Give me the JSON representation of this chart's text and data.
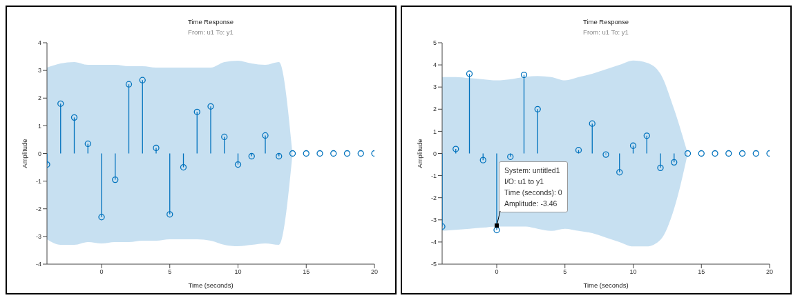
{
  "chart_data": [
    {
      "type": "lollipop",
      "title": "Time Response",
      "subtitle": "From: u1  To: y1",
      "xlabel": "Time (seconds)",
      "ylabel": "Amplitude",
      "x": [
        -4,
        -3,
        -2,
        -1,
        0,
        1,
        2,
        3,
        4,
        5,
        6,
        7,
        8,
        9,
        10,
        11,
        12,
        13,
        14,
        15,
        16,
        17,
        18,
        19,
        20
      ],
      "series": [
        {
          "color": "#0072bd",
          "values": [
            -0.4,
            1.8,
            1.3,
            0.35,
            -2.3,
            -0.95,
            2.5,
            2.65,
            0.2,
            -2.2,
            -0.5,
            1.5,
            1.7,
            0.6,
            -0.4,
            -0.1,
            0.65,
            -0.1,
            0,
            0,
            0,
            0,
            0,
            0,
            0
          ],
          "lower": [
            -3.1,
            -3.3,
            -3.3,
            -3.2,
            -3.25,
            -3.2,
            -3.2,
            -3.15,
            -3.15,
            -3.1,
            -3.1,
            -3.1,
            -3.15,
            -3.3,
            -3.35,
            -3.3,
            -3.25,
            -3.3,
            0,
            null,
            null,
            null,
            null,
            null,
            null
          ],
          "upper": [
            3.1,
            3.25,
            3.3,
            3.2,
            3.2,
            3.2,
            3.15,
            3.15,
            3.1,
            3.1,
            3.1,
            3.1,
            3.1,
            3.3,
            3.35,
            3.25,
            3.2,
            3.3,
            0,
            null,
            null,
            null,
            null,
            null,
            null
          ]
        }
      ],
      "xlim": [
        -4,
        20
      ],
      "xticks": [
        0,
        5,
        10,
        15,
        20
      ],
      "ylim": [
        -4,
        4
      ],
      "yticks": [
        -4,
        -3,
        -2,
        -1,
        0,
        1,
        2,
        3,
        4
      ],
      "marker": "circle",
      "grid": false,
      "legend": false
    },
    {
      "type": "lollipop",
      "title": "Time Response",
      "subtitle": "From: u1  To: y1",
      "xlabel": "Time (seconds)",
      "ylabel": "Amplitude",
      "x": [
        -4,
        -3,
        -2,
        -1,
        0,
        1,
        2,
        3,
        4,
        5,
        6,
        7,
        8,
        9,
        10,
        11,
        12,
        13,
        14,
        15,
        16,
        17,
        18,
        19,
        20
      ],
      "series": [
        {
          "color": "#0072bd",
          "values": [
            -3.3,
            0.2,
            3.6,
            -0.3,
            -3.46,
            -0.15,
            3.55,
            2.0,
            null,
            null,
            0.15,
            1.35,
            -0.05,
            -0.85,
            0.35,
            0.8,
            -0.65,
            -0.4,
            0,
            0,
            0,
            0,
            0,
            0,
            0
          ],
          "lower": [
            -3.5,
            -3.45,
            -3.4,
            -3.35,
            -3.3,
            -3.3,
            -3.3,
            -3.4,
            -3.5,
            -3.4,
            -3.5,
            -3.6,
            -3.8,
            -4.0,
            -4.2,
            -4.2,
            -3.9,
            -2.5,
            0,
            null,
            null,
            null,
            null,
            null,
            null
          ],
          "upper": [
            3.45,
            3.45,
            3.4,
            3.35,
            3.3,
            3.35,
            3.45,
            3.5,
            3.45,
            3.3,
            3.45,
            3.6,
            3.8,
            4.0,
            4.2,
            4.1,
            3.6,
            2.0,
            0,
            null,
            null,
            null,
            null,
            null,
            null
          ]
        }
      ],
      "xlim": [
        -4,
        20
      ],
      "xticks": [
        0,
        5,
        10,
        15,
        20
      ],
      "ylim": [
        -5,
        5
      ],
      "yticks": [
        -5,
        -4,
        -3,
        -2,
        -1,
        0,
        1,
        2,
        3,
        4,
        5
      ],
      "marker": "circle",
      "grid": false,
      "legend": false,
      "annotations": [
        {
          "text": "System: untitled1\nI/O: u1 to y1\nTime (seconds): 0\nAmplitude: -3.46",
          "x": 0,
          "y": -3.46
        }
      ]
    }
  ]
}
